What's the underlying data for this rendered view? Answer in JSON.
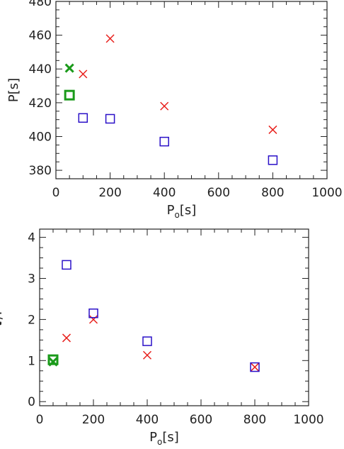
{
  "chart_data": [
    {
      "type": "scatter",
      "xlabel": "P",
      "xlabel_sub": "o",
      "xlabel_unit": "[s]",
      "ylabel": "P[s]",
      "xlim": [
        0,
        1000
      ],
      "ylim": [
        375,
        480
      ],
      "xticks": [
        0,
        200,
        400,
        600,
        800,
        1000
      ],
      "yticks": [
        380,
        400,
        420,
        440,
        460,
        480
      ],
      "grid": false,
      "series": [
        {
          "marker": "x",
          "color": "#e8201c",
          "x": [
            100,
            200,
            400,
            800
          ],
          "y": [
            437,
            458,
            418,
            404
          ]
        },
        {
          "marker": "square",
          "color": "#2a10c8",
          "x": [
            100,
            200,
            400,
            800
          ],
          "y": [
            411,
            410.5,
            397,
            386
          ]
        },
        {
          "marker": "x",
          "color": "#1a9a1a",
          "bold": true,
          "x": [
            50
          ],
          "y": [
            440.5
          ]
        },
        {
          "marker": "square",
          "color": "#1a9a1a",
          "bold": true,
          "x": [
            50
          ],
          "y": [
            424.5
          ]
        }
      ]
    },
    {
      "type": "scatter",
      "xlabel": "P",
      "xlabel_sub": "o",
      "xlabel_unit": "[s]",
      "ylabel_greek": "τ",
      "ylabel_rest": "/P",
      "xlim": [
        0,
        1000
      ],
      "ylim": [
        -0.1,
        4.2
      ],
      "xticks": [
        0,
        200,
        400,
        600,
        800,
        1000
      ],
      "yticks": [
        0,
        1,
        2,
        3,
        4
      ],
      "grid": false,
      "series": [
        {
          "marker": "x",
          "color": "#e8201c",
          "x": [
            100,
            200,
            400,
            800
          ],
          "y": [
            1.55,
            2.0,
            1.13,
            0.84
          ]
        },
        {
          "marker": "square",
          "color": "#2a10c8",
          "x": [
            100,
            200,
            400,
            800
          ],
          "y": [
            3.33,
            2.15,
            1.47,
            0.84
          ]
        },
        {
          "marker": "x",
          "color": "#1a9a1a",
          "bold": true,
          "x": [
            50
          ],
          "y": [
            0.97
          ]
        },
        {
          "marker": "square",
          "color": "#1a9a1a",
          "bold": true,
          "x": [
            50
          ],
          "y": [
            1.02
          ]
        }
      ]
    }
  ]
}
